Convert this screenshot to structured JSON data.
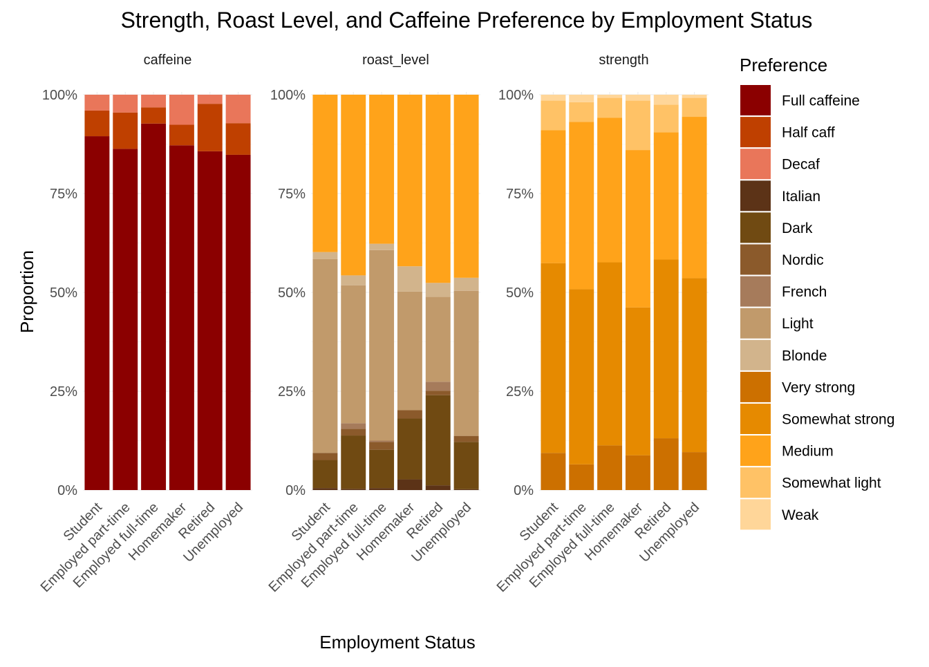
{
  "chart_data": {
    "type": "bar",
    "stacked": true,
    "title": "Strength, Roast Level, and Caffeine Preference by Employment Status",
    "xlabel": "Employment Status",
    "ylabel": "Proportion",
    "ylim": [
      0,
      1
    ],
    "y_ticks": [
      "0%",
      "25%",
      "50%",
      "75%",
      "100%"
    ],
    "grid": true,
    "categories": [
      "Student",
      "Employed part-time",
      "Employed full-time",
      "Homemaker",
      "Retired",
      "Unemployed"
    ],
    "legend": {
      "title": "Preference",
      "position": "right",
      "entries": [
        {
          "label": "Full caffeine",
          "color": "#8B0000"
        },
        {
          "label": "Half caff",
          "color": "#BF4000"
        },
        {
          "label": "Decaf",
          "color": "#E9765A"
        },
        {
          "label": "Italian",
          "color": "#5C3317"
        },
        {
          "label": "Dark",
          "color": "#704A12"
        },
        {
          "label": "Nordic",
          "color": "#8B5A2B"
        },
        {
          "label": "French",
          "color": "#A67B5B"
        },
        {
          "label": "Light",
          "color": "#C19A6B"
        },
        {
          "label": "Blonde",
          "color": "#D2B48C"
        },
        {
          "label": "Very strong",
          "color": "#CC7000"
        },
        {
          "label": "Somewhat strong",
          "color": "#E68A00"
        },
        {
          "label": "Medium",
          "color": "#FFA31A"
        },
        {
          "label": "Somewhat light",
          "color": "#FFC266"
        },
        {
          "label": "Weak",
          "color": "#FFD699"
        }
      ]
    },
    "panels": [
      {
        "facet": "caffeine",
        "stack_order_bottom_to_top": [
          "Full caffeine",
          "Half caff",
          "Decaf"
        ],
        "series": [
          {
            "name": "Full caffeine",
            "values": [
              0.895,
              0.863,
              0.927,
              0.872,
              0.857,
              0.848
            ]
          },
          {
            "name": "Half caff",
            "values": [
              0.065,
              0.092,
              0.041,
              0.052,
              0.12,
              0.08
            ]
          },
          {
            "name": "Decaf",
            "values": [
              0.04,
              0.045,
              0.032,
              0.076,
              0.023,
              0.072
            ]
          }
        ]
      },
      {
        "facet": "roast_level",
        "stack_order_bottom_to_top": [
          "Italian",
          "Dark",
          "Nordic",
          "French",
          "Light",
          "Blonde",
          "Medium"
        ],
        "series": [
          {
            "name": "Italian",
            "values": [
              0.005,
              0.003,
              0.005,
              0.027,
              0.012,
              0.002
            ]
          },
          {
            "name": "Dark",
            "values": [
              0.071,
              0.135,
              0.097,
              0.154,
              0.228,
              0.12
            ]
          },
          {
            "name": "Nordic",
            "values": [
              0.018,
              0.017,
              0.02,
              0.021,
              0.011,
              0.015
            ]
          },
          {
            "name": "French",
            "values": [
              0.0,
              0.014,
              0.003,
              0.0,
              0.023,
              0.0
            ]
          },
          {
            "name": "Light",
            "values": [
              0.49,
              0.349,
              0.482,
              0.3,
              0.215,
              0.367
            ]
          },
          {
            "name": "Blonde",
            "values": [
              0.018,
              0.025,
              0.016,
              0.064,
              0.035,
              0.033
            ]
          },
          {
            "name": "Medium",
            "values": [
              0.398,
              0.457,
              0.377,
              0.434,
              0.476,
              0.463
            ]
          }
        ]
      },
      {
        "facet": "strength",
        "stack_order_bottom_to_top": [
          "Very strong",
          "Somewhat strong",
          "Medium",
          "Somewhat light",
          "Weak"
        ],
        "series": [
          {
            "name": "Very strong",
            "values": [
              0.094,
              0.065,
              0.113,
              0.088,
              0.131,
              0.096
            ]
          },
          {
            "name": "Somewhat strong",
            "values": [
              0.48,
              0.443,
              0.463,
              0.374,
              0.452,
              0.44
            ]
          },
          {
            "name": "Medium",
            "values": [
              0.336,
              0.423,
              0.366,
              0.398,
              0.322,
              0.408
            ]
          },
          {
            "name": "Somewhat light",
            "values": [
              0.075,
              0.05,
              0.05,
              0.125,
              0.07,
              0.048
            ]
          },
          {
            "name": "Weak",
            "values": [
              0.015,
              0.019,
              0.008,
              0.015,
              0.025,
              0.008
            ]
          }
        ]
      }
    ]
  }
}
